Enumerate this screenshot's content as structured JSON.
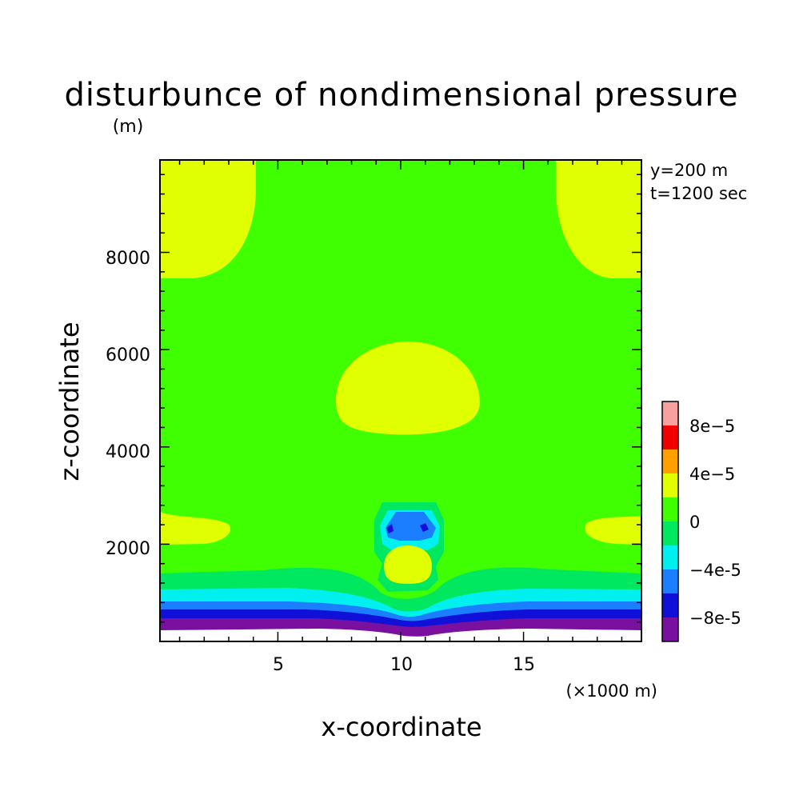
{
  "chart_data": {
    "type": "heatmap",
    "title": "disturbunce of nondimensional pressure",
    "unit": "(m)",
    "annotation": [
      "y=200 m",
      "t=1200 sec"
    ],
    "xlabel": "x-coordinate",
    "ylabel": "z-coordinate",
    "x_unit": "(×1000 m)",
    "xlim": [
      0.2,
      19.8
    ],
    "ylim": [
      0,
      9900
    ],
    "xticks": [
      5,
      10,
      15
    ],
    "xtick_labels": [
      "5",
      "10",
      "15"
    ],
    "yticks": [
      2000,
      4000,
      6000,
      8000
    ],
    "ytick_labels": [
      "2000",
      "4000",
      "6000",
      "8000"
    ],
    "colorbar": {
      "levels": [
        -0.0001,
        -8e-05,
        -6e-05,
        -4e-05,
        -2e-05,
        0,
        2e-05,
        4e-05,
        6e-05,
        8e-05,
        0.0001
      ],
      "colors": [
        "#7a10a0",
        "#1010d8",
        "#1a7eff",
        "#00f0f0",
        "#00e860",
        "#40ff00",
        "#e0ff00",
        "#ffa000",
        "#f00000",
        "#f8a0a0"
      ],
      "tick_labels": [
        "-8e-5",
        "-4e-5",
        "0",
        "4e-5",
        "8e-5"
      ],
      "tick_values": [
        -8e-05,
        -4e-05,
        0,
        4e-05,
        8e-05
      ]
    }
  }
}
